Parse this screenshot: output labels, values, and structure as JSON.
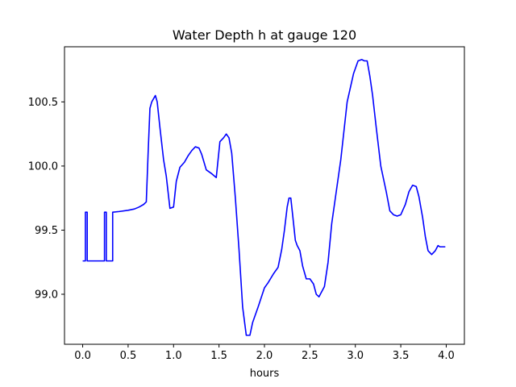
{
  "chart_data": {
    "type": "line",
    "title": "Water Depth h at gauge 120",
    "xlabel": "hours",
    "ylabel": "",
    "xlim": [
      -0.2,
      4.2
    ],
    "ylim": [
      98.61,
      100.93
    ],
    "xticks": [
      0.0,
      0.5,
      1.0,
      1.5,
      2.0,
      2.5,
      3.0,
      3.5,
      4.0
    ],
    "xtick_labels": [
      "0.0",
      "0.5",
      "1.0",
      "1.5",
      "2.0",
      "2.5",
      "3.0",
      "3.5",
      "4.0"
    ],
    "yticks": [
      99.0,
      99.5,
      100.0,
      100.5
    ],
    "ytick_labels": [
      "99.0",
      "99.5",
      "100.0",
      "100.5"
    ],
    "grid": false,
    "color": "#0000ff",
    "series": [
      {
        "x": [
          0.0,
          0.03,
          0.03,
          0.05,
          0.05,
          0.24,
          0.24,
          0.26,
          0.26,
          0.33,
          0.33,
          0.4,
          0.5,
          0.57,
          0.62,
          0.67,
          0.7,
          0.72,
          0.74,
          0.76,
          0.8,
          0.82,
          0.85,
          0.89,
          0.92,
          0.96,
          1.0,
          1.03,
          1.07,
          1.12,
          1.16,
          1.2,
          1.24,
          1.28,
          1.31,
          1.36,
          1.42,
          1.47,
          1.51,
          1.55,
          1.58,
          1.61,
          1.64,
          1.68,
          1.72,
          1.76,
          1.8,
          1.84,
          1.87,
          1.93,
          2.0,
          2.04,
          2.1,
          2.15,
          2.19,
          2.22,
          2.25,
          2.27,
          2.29,
          2.31,
          2.34,
          2.36,
          2.39,
          2.42,
          2.46,
          2.5,
          2.54,
          2.57,
          2.6,
          2.63,
          2.66,
          2.7,
          2.74,
          2.78,
          2.84,
          2.91,
          2.98,
          3.03,
          3.07,
          3.1,
          3.13,
          3.16,
          3.19,
          3.23,
          3.28,
          3.34,
          3.38,
          3.42,
          3.46,
          3.5,
          3.55,
          3.59,
          3.63,
          3.67,
          3.7,
          3.74,
          3.77,
          3.8,
          3.84,
          3.88,
          3.91,
          3.93,
          3.95,
          3.97,
          3.99
        ],
        "y": [
          99.26,
          99.26,
          99.64,
          99.64,
          99.26,
          99.26,
          99.64,
          99.64,
          99.26,
          99.26,
          99.64,
          99.645,
          99.655,
          99.665,
          99.68,
          99.7,
          99.72,
          100.1,
          100.45,
          100.5,
          100.55,
          100.5,
          100.3,
          100.05,
          99.92,
          99.67,
          99.68,
          99.88,
          99.99,
          100.03,
          100.08,
          100.12,
          100.15,
          100.14,
          100.09,
          99.97,
          99.94,
          99.91,
          100.19,
          100.22,
          100.25,
          100.22,
          100.1,
          99.75,
          99.35,
          98.9,
          98.68,
          98.68,
          98.78,
          98.9,
          99.05,
          99.09,
          99.16,
          99.21,
          99.35,
          99.5,
          99.68,
          99.75,
          99.75,
          99.62,
          99.42,
          99.38,
          99.34,
          99.22,
          99.12,
          99.12,
          99.08,
          99.0,
          98.98,
          99.02,
          99.06,
          99.25,
          99.55,
          99.75,
          100.05,
          100.5,
          100.72,
          100.82,
          100.83,
          100.82,
          100.82,
          100.7,
          100.55,
          100.3,
          100.0,
          99.8,
          99.65,
          99.62,
          99.61,
          99.62,
          99.7,
          99.8,
          99.85,
          99.84,
          99.76,
          99.6,
          99.45,
          99.34,
          99.31,
          99.34,
          99.38,
          99.37,
          99.37,
          99.37,
          99.37
        ]
      }
    ]
  }
}
